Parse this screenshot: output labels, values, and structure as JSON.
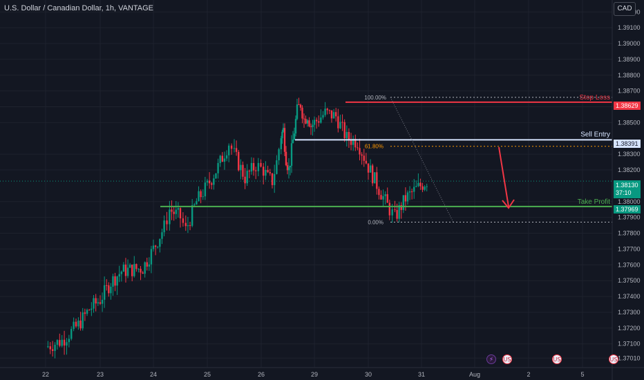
{
  "header": {
    "title": "U.S. Dollar / Canadian Dollar, 1h, VANTAGE",
    "currency_button": "CAD"
  },
  "price_axis": {
    "ticks": [
      "1.39200",
      "1.39100",
      "1.39000",
      "1.38900",
      "1.38800",
      "1.38700",
      "1.38600",
      "1.38500",
      "1.38300",
      "1.38200",
      "1.38000",
      "1.37900",
      "1.37800",
      "1.37700",
      "1.37600",
      "1.37500",
      "1.37400",
      "1.37300",
      "1.37200",
      "1.37100",
      "1.37010"
    ],
    "tags": {
      "stop_loss": "1.38629",
      "sell_entry": "1.38391",
      "current_price": "1.38130",
      "countdown": "37:10",
      "take_profit": "1.37969"
    }
  },
  "time_axis": {
    "labels": [
      "22",
      "23",
      "24",
      "25",
      "26",
      "29",
      "30",
      "31",
      "Aug",
      "2",
      "5"
    ]
  },
  "drawings": {
    "stop_loss_label": "Stop Loss",
    "sell_entry_label": "Sell Entry",
    "take_profit_label": "Take Profit",
    "fib_100": "100.00%",
    "fib_618": "61.80%",
    "fib_0": "0.00%"
  },
  "events": [
    {
      "name": "lightning-event-icon",
      "glyph": "⚡"
    },
    {
      "name": "us-flag-event-icon",
      "glyph": "US"
    },
    {
      "name": "us-flag-event-icon",
      "glyph": "US"
    },
    {
      "name": "us-flag-event-icon",
      "glyph": "US"
    }
  ],
  "chart_data": {
    "type": "candlestick",
    "symbol": "U.S. Dollar / Canadian Dollar",
    "interval": "1h",
    "ylim": [
      1.37,
      1.3926
    ],
    "levels": {
      "stop_loss": 1.38629,
      "sell_entry": 1.38391,
      "take_profit": 1.37969,
      "current": 1.3813,
      "fib_100": 1.3866,
      "fib_618": 1.3835,
      "fib_0": 1.3787
    },
    "colors": {
      "up": "#089981",
      "down": "#f23645",
      "background": "#131722",
      "stop_loss": "#f23645",
      "sell_entry": "#d6e4ff",
      "take_profit": "#4caf50"
    },
    "price_path": [
      [
        22,
        1.3708
      ],
      [
        22.3,
        1.3712
      ],
      [
        22.6,
        1.3722
      ],
      [
        22.8,
        1.3732
      ],
      [
        23,
        1.3738
      ],
      [
        23.2,
        1.3749
      ],
      [
        23.4,
        1.3756
      ],
      [
        23.6,
        1.3757
      ],
      [
        23.8,
        1.3758
      ],
      [
        24,
        1.377
      ],
      [
        24.2,
        1.3784
      ],
      [
        24.3,
        1.3795
      ],
      [
        24.5,
        1.379
      ],
      [
        24.6,
        1.3782
      ],
      [
        24.8,
        1.38
      ],
      [
        25,
        1.381
      ],
      [
        25.2,
        1.3822
      ],
      [
        25.4,
        1.3837
      ],
      [
        25.5,
        1.383
      ],
      [
        25.7,
        1.3815
      ],
      [
        25.9,
        1.3823
      ],
      [
        26.1,
        1.382
      ],
      [
        26.3,
        1.3815
      ],
      [
        26.5,
        1.3813
      ],
      [
        26.7,
        1.3825
      ],
      [
        26.9,
        1.3842
      ],
      [
        27,
        1.3845
      ],
      [
        27.2,
        1.3828
      ],
      [
        27.4,
        1.382
      ],
      [
        27.6,
        1.3832
      ],
      [
        27.8,
        1.3845
      ],
      [
        28,
        1.3857
      ],
      [
        28.2,
        1.3862
      ],
      [
        28.4,
        1.3852
      ],
      [
        28.6,
        1.3855
      ],
      [
        28.8,
        1.3848
      ],
      [
        29,
        1.385
      ],
      [
        29.2,
        1.3856
      ],
      [
        29.4,
        1.3854
      ],
      [
        29.6,
        1.384
      ],
      [
        29.8,
        1.3838
      ],
      [
        30,
        1.3822
      ],
      [
        30.2,
        1.3808
      ],
      [
        30.4,
        1.3795
      ],
      [
        30.5,
        1.379
      ],
      [
        30.7,
        1.3802
      ],
      [
        30.9,
        1.3808
      ],
      [
        31.1,
        1.3813
      ]
    ]
  }
}
